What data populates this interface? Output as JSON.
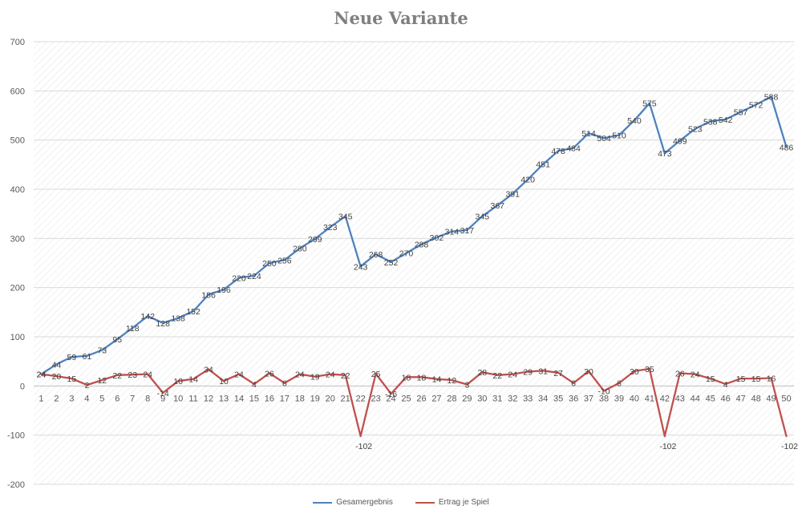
{
  "chart_data": {
    "type": "line",
    "title": "Neue Variante",
    "xlabel": "",
    "ylabel": "",
    "categories": [
      "1",
      "2",
      "3",
      "4",
      "5",
      "6",
      "7",
      "8",
      "9",
      "10",
      "11",
      "12",
      "13",
      "14",
      "15",
      "16",
      "17",
      "18",
      "19",
      "20",
      "21",
      "22",
      "23",
      "24",
      "25",
      "26",
      "27",
      "28",
      "29",
      "30",
      "31",
      "32",
      "33",
      "34",
      "35",
      "36",
      "37",
      "38",
      "39",
      "40",
      "41",
      "42",
      "43",
      "44",
      "45",
      "46",
      "47",
      "48",
      "49",
      "50"
    ],
    "ylim": [
      -200,
      700
    ],
    "yticks": [
      -200,
      -100,
      0,
      100,
      200,
      300,
      400,
      500,
      600,
      700
    ],
    "grid": true,
    "legend_position": "bottom",
    "series": [
      {
        "name": "Gesamergebnis",
        "color": "#4f81bd",
        "values": [
          24,
          44,
          59,
          61,
          73,
          95,
          118,
          142,
          128,
          138,
          152,
          186,
          196,
          220,
          224,
          250,
          256,
          280,
          299,
          323,
          345,
          243,
          268,
          252,
          270,
          288,
          302,
          314,
          317,
          345,
          367,
          391,
          420,
          451,
          478,
          484,
          514,
          504,
          510,
          540,
          575,
          473,
          499,
          523,
          538,
          542,
          557,
          572,
          588,
          486
        ]
      },
      {
        "name": "Ertrag je Spiel",
        "color": "#c0504d",
        "values": [
          24,
          20,
          15,
          2,
          12,
          22,
          23,
          24,
          -14,
          10,
          14,
          34,
          10,
          24,
          4,
          26,
          6,
          24,
          19,
          24,
          22,
          -102,
          25,
          -16,
          18,
          18,
          14,
          12,
          3,
          28,
          22,
          24,
          29,
          31,
          27,
          6,
          30,
          -10,
          6,
          30,
          35,
          -102,
          26,
          24,
          15,
          4,
          15,
          15,
          16,
          -102
        ]
      }
    ]
  }
}
